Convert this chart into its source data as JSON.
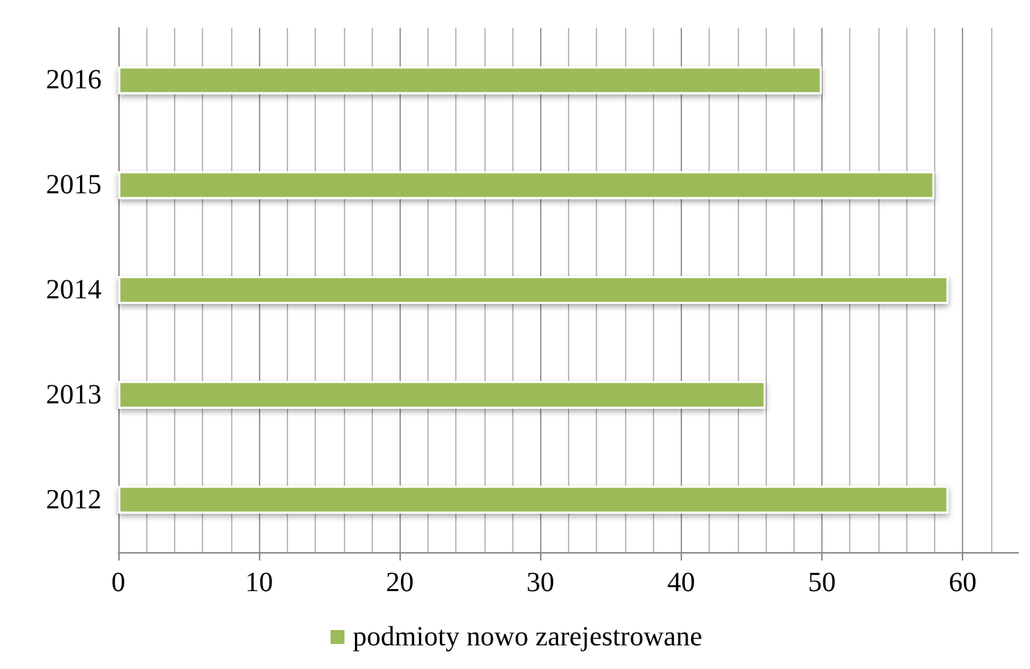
{
  "chart_data": {
    "type": "bar",
    "orientation": "horizontal",
    "categories": [
      "2016",
      "2015",
      "2014",
      "2013",
      "2012"
    ],
    "series": [
      {
        "name": "podmioty nowo zarejestrowane",
        "color": "#9bbb59",
        "values": [
          50,
          58,
          59,
          46,
          59
        ]
      }
    ],
    "xlim": [
      0,
      64
    ],
    "xticks": [
      0,
      10,
      20,
      30,
      40,
      50,
      60
    ],
    "grid": "x",
    "legend": "bottom"
  }
}
